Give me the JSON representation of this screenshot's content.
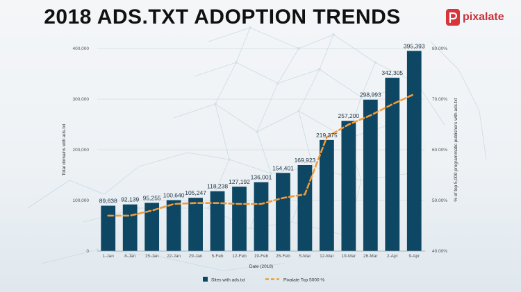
{
  "header": {
    "title": "2018 ADS.TXT ADOPTION TRENDS",
    "logo_text": "pixalate"
  },
  "colors": {
    "bar": "#0e4764",
    "line": "#f39a35",
    "title": "#111111",
    "logo": "#d8343b"
  },
  "chart_data": {
    "type": "bar",
    "xlabel": "Date (2018)",
    "ylabel": "Total domains with ads.txt",
    "y2label": "% of top 5,000 programmatic publishers with ads.txt",
    "categories": [
      "1-Jan",
      "8-Jan",
      "15-Jan",
      "22-Jan",
      "29-Jan",
      "5-Feb",
      "12-Feb",
      "19-Feb",
      "26-Feb",
      "5-Mar",
      "12-Mar",
      "19-Mar",
      "26-Mar",
      "2-Apr",
      "9-Apr"
    ],
    "ylim": [
      0,
      400000
    ],
    "yticks": [
      "0",
      "100,000",
      "200,000",
      "300,000",
      "400,000"
    ],
    "y2lim": [
      40,
      80
    ],
    "y2ticks": [
      "40.00%",
      "50.00%",
      "60.00%",
      "70.00%",
      "80.00%"
    ],
    "grid": true,
    "legend_position": "bottom",
    "series": [
      {
        "name": "Sites with ads.txt",
        "type": "bar",
        "axis": "left",
        "values": [
          89638,
          92139,
          95255,
          100640,
          105247,
          118238,
          127192,
          136001,
          154401,
          169923,
          219375,
          257200,
          298993,
          342305,
          395393
        ],
        "labels": [
          "89,638",
          "92,139",
          "95,255",
          "100,640",
          "105,247",
          "118,238",
          "127,192",
          "136,001",
          "154,401",
          "169,923",
          "219,375",
          "257,200",
          "298,993",
          "342,305",
          "395,393"
        ]
      },
      {
        "name": "Pixalate Top 5000 %",
        "type": "line",
        "axis": "right",
        "style": "dashed",
        "values": [
          47.0,
          47.0,
          48.0,
          49.3,
          49.5,
          49.5,
          49.3,
          49.3,
          50.5,
          51.2,
          62.5,
          65.0,
          66.8,
          69.0,
          71.0
        ]
      }
    ]
  }
}
